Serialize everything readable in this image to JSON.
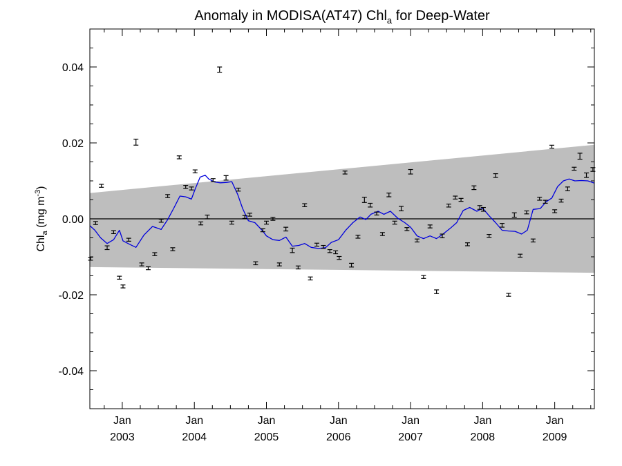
{
  "chart_data": {
    "type": "line",
    "title": {
      "main": "Anomaly in MODISA(AT47) Chl",
      "sub": "a",
      "rest": " for Deep-Water"
    },
    "ylabel": {
      "main": "Chl",
      "sub": "a",
      "mid": " (mg m",
      "sup": "-3",
      "end": ")"
    },
    "xlim": [
      2002.55,
      2009.55
    ],
    "ylim": [
      -0.05,
      0.05
    ],
    "x_ticks": [
      {
        "month": "Jan",
        "year": "2003",
        "x": 2003.0
      },
      {
        "month": "Jan",
        "year": "2004",
        "x": 2004.0
      },
      {
        "month": "Jan",
        "year": "2005",
        "x": 2005.0
      },
      {
        "month": "Jan",
        "year": "2006",
        "x": 2006.0
      },
      {
        "month": "Jan",
        "year": "2007",
        "x": 2007.0
      },
      {
        "month": "Jan",
        "year": "2008",
        "x": 2008.0
      },
      {
        "month": "Jan",
        "year": "2009",
        "x": 2009.0
      }
    ],
    "y_ticks": [
      {
        "value": 0.04,
        "label": "0.04"
      },
      {
        "value": 0.02,
        "label": "0.02"
      },
      {
        "value": 0.0,
        "label": "0.00"
      },
      {
        "value": -0.02,
        "label": "-0.02"
      },
      {
        "value": -0.04,
        "label": "-0.04"
      }
    ],
    "band": {
      "name": "uncertainty envelope",
      "upper": [
        [
          2002.55,
          0.0068
        ],
        [
          2009.55,
          0.0195
        ]
      ],
      "lower": [
        [
          2002.55,
          -0.0127
        ],
        [
          2009.55,
          -0.0142
        ]
      ]
    },
    "zero_line": 0.0,
    "series": [
      {
        "type": "errorbar",
        "color": "#000000",
        "points": [
          {
            "x": 2002.54,
            "y": -0.0105,
            "err": 0.0003
          },
          {
            "x": 2002.63,
            "y": -0.0011,
            "err": 0.0003
          },
          {
            "x": 2002.71,
            "y": 0.0087,
            "err": 0.0003
          },
          {
            "x": 2002.79,
            "y": -0.0076,
            "err": 0.0004
          },
          {
            "x": 2002.88,
            "y": -0.0035,
            "err": 0.0003
          },
          {
            "x": 2002.96,
            "y": -0.0155,
            "err": 0.0003
          },
          {
            "x": 2003.01,
            "y": -0.0178,
            "err": 0.0003
          },
          {
            "x": 2003.09,
            "y": -0.0055,
            "err": 0.0003
          },
          {
            "x": 2003.19,
            "y": 0.0202,
            "err": 0.0007
          },
          {
            "x": 2003.27,
            "y": -0.012,
            "err": 0.0003
          },
          {
            "x": 2003.36,
            "y": -0.013,
            "err": 0.0003
          },
          {
            "x": 2003.45,
            "y": -0.0093,
            "err": 0.0003
          },
          {
            "x": 2003.54,
            "y": -0.0005,
            "err": 0.0003
          },
          {
            "x": 2003.63,
            "y": 0.006,
            "err": 0.0003
          },
          {
            "x": 2003.7,
            "y": -0.008,
            "err": 0.0003
          },
          {
            "x": 2003.79,
            "y": 0.0162,
            "err": 0.0003
          },
          {
            "x": 2003.88,
            "y": 0.0084,
            "err": 0.0003
          },
          {
            "x": 2003.96,
            "y": 0.008,
            "err": 0.0003
          },
          {
            "x": 2004.01,
            "y": 0.0125,
            "err": 0.0003
          },
          {
            "x": 2004.09,
            "y": -0.0012,
            "err": 0.0003
          },
          {
            "x": 2004.18,
            "y": 0.0005,
            "err": 0.0004
          },
          {
            "x": 2004.26,
            "y": 0.0102,
            "err": 0.0003
          },
          {
            "x": 2004.35,
            "y": 0.0393,
            "err": 0.0006
          },
          {
            "x": 2004.44,
            "y": 0.0108,
            "err": 0.0005
          },
          {
            "x": 2004.52,
            "y": -0.001,
            "err": 0.0003
          },
          {
            "x": 2004.61,
            "y": 0.0077,
            "err": 0.0003
          },
          {
            "x": 2004.7,
            "y": 0.0005,
            "err": 0.0003
          },
          {
            "x": 2004.77,
            "y": 0.0011,
            "err": 0.0003
          },
          {
            "x": 2004.85,
            "y": -0.0117,
            "err": 0.0003
          },
          {
            "x": 2004.95,
            "y": -0.003,
            "err": 0.0003
          },
          {
            "x": 2005.0,
            "y": -0.001,
            "err": 0.0003
          },
          {
            "x": 2005.09,
            "y": 0.0,
            "err": 0.0003
          },
          {
            "x": 2005.18,
            "y": -0.012,
            "err": 0.0003
          },
          {
            "x": 2005.27,
            "y": -0.0027,
            "err": 0.0004
          },
          {
            "x": 2005.36,
            "y": -0.0083,
            "err": 0.0005
          },
          {
            "x": 2005.44,
            "y": -0.0128,
            "err": 0.0003
          },
          {
            "x": 2005.53,
            "y": 0.0036,
            "err": 0.0003
          },
          {
            "x": 2005.61,
            "y": -0.0157,
            "err": 0.0003
          },
          {
            "x": 2005.7,
            "y": -0.0068,
            "err": 0.0003
          },
          {
            "x": 2005.79,
            "y": -0.0074,
            "err": 0.0003
          },
          {
            "x": 2005.88,
            "y": -0.0085,
            "err": 0.0003
          },
          {
            "x": 2005.96,
            "y": -0.0088,
            "err": 0.0003
          },
          {
            "x": 2006.01,
            "y": -0.0103,
            "err": 0.0003
          },
          {
            "x": 2006.09,
            "y": 0.0122,
            "err": 0.0003
          },
          {
            "x": 2006.18,
            "y": -0.0122,
            "err": 0.0004
          },
          {
            "x": 2006.27,
            "y": -0.0047,
            "err": 0.0003
          },
          {
            "x": 2006.36,
            "y": 0.005,
            "err": 0.0006
          },
          {
            "x": 2006.44,
            "y": 0.0036,
            "err": 0.0004
          },
          {
            "x": 2006.53,
            "y": 0.0014,
            "err": 0.0003
          },
          {
            "x": 2006.61,
            "y": -0.004,
            "err": 0.0003
          },
          {
            "x": 2006.7,
            "y": 0.0063,
            "err": 0.0004
          },
          {
            "x": 2006.78,
            "y": -0.001,
            "err": 0.0003
          },
          {
            "x": 2006.87,
            "y": 0.0027,
            "err": 0.0005
          },
          {
            "x": 2006.95,
            "y": -0.0027,
            "err": 0.0003
          },
          {
            "x": 2007.0,
            "y": 0.0124,
            "err": 0.0005
          },
          {
            "x": 2007.09,
            "y": -0.0057,
            "err": 0.0003
          },
          {
            "x": 2007.18,
            "y": -0.0153,
            "err": 0.0003
          },
          {
            "x": 2007.27,
            "y": -0.002,
            "err": 0.0003
          },
          {
            "x": 2007.36,
            "y": -0.0192,
            "err": 0.0004
          },
          {
            "x": 2007.44,
            "y": -0.0045,
            "err": 0.0004
          },
          {
            "x": 2007.53,
            "y": 0.0035,
            "err": 0.0003
          },
          {
            "x": 2007.62,
            "y": 0.0056,
            "err": 0.0003
          },
          {
            "x": 2007.7,
            "y": 0.005,
            "err": 0.0003
          },
          {
            "x": 2007.79,
            "y": -0.0067,
            "err": 0.0003
          },
          {
            "x": 2007.88,
            "y": 0.0082,
            "err": 0.0004
          },
          {
            "x": 2007.96,
            "y": 0.003,
            "err": 0.0004
          },
          {
            "x": 2008.01,
            "y": 0.0025,
            "err": 0.0004
          },
          {
            "x": 2008.09,
            "y": -0.0045,
            "err": 0.0003
          },
          {
            "x": 2008.18,
            "y": 0.0114,
            "err": 0.0004
          },
          {
            "x": 2008.27,
            "y": -0.0017,
            "err": 0.0004
          },
          {
            "x": 2008.36,
            "y": -0.02,
            "err": 0.0003
          },
          {
            "x": 2008.44,
            "y": 0.001,
            "err": 0.0005
          },
          {
            "x": 2008.52,
            "y": -0.0097,
            "err": 0.0003
          },
          {
            "x": 2008.61,
            "y": 0.0017,
            "err": 0.0003
          },
          {
            "x": 2008.7,
            "y": -0.0057,
            "err": 0.0003
          },
          {
            "x": 2008.79,
            "y": 0.0053,
            "err": 0.0003
          },
          {
            "x": 2008.87,
            "y": 0.0045,
            "err": 0.0003
          },
          {
            "x": 2008.96,
            "y": 0.019,
            "err": 0.0003
          },
          {
            "x": 2009.0,
            "y": 0.002,
            "err": 0.0003
          },
          {
            "x": 2009.09,
            "y": 0.0048,
            "err": 0.0003
          },
          {
            "x": 2009.18,
            "y": 0.0079,
            "err": 0.0004
          },
          {
            "x": 2009.27,
            "y": 0.0132,
            "err": 0.0003
          },
          {
            "x": 2009.35,
            "y": 0.0165,
            "err": 0.0007
          },
          {
            "x": 2009.44,
            "y": 0.0115,
            "err": 0.0005
          },
          {
            "x": 2009.53,
            "y": 0.013,
            "err": 0.0004
          }
        ]
      },
      {
        "type": "line",
        "color": "#0000dd",
        "x": [
          2002.55,
          2002.62,
          2002.7,
          2002.79,
          2002.88,
          2002.96,
          2003.01,
          2003.1,
          2003.19,
          2003.3,
          2003.42,
          2003.54,
          2003.63,
          2003.72,
          2003.8,
          2003.88,
          2003.96,
          2004.01,
          2004.08,
          2004.15,
          2004.2,
          2004.28,
          2004.36,
          2004.45,
          2004.52,
          2004.6,
          2004.67,
          2004.75,
          2004.84,
          2004.94,
          2005.0,
          2005.09,
          2005.18,
          2005.27,
          2005.36,
          2005.45,
          2005.53,
          2005.62,
          2005.72,
          2005.82,
          2005.9,
          2006.0,
          2006.1,
          2006.2,
          2006.3,
          2006.38,
          2006.45,
          2006.55,
          2006.63,
          2006.72,
          2006.82,
          2006.92,
          2007.0,
          2007.09,
          2007.18,
          2007.27,
          2007.36,
          2007.45,
          2007.55,
          2007.64,
          2007.73,
          2007.82,
          2007.92,
          2008.0,
          2008.09,
          2008.18,
          2008.27,
          2008.36,
          2008.45,
          2008.54,
          2008.62,
          2008.7,
          2008.8,
          2008.88,
          2008.96,
          2009.04,
          2009.12,
          2009.2,
          2009.28,
          2009.37,
          2009.46,
          2009.55
        ],
        "y": [
          -0.0018,
          -0.003,
          -0.005,
          -0.0065,
          -0.0055,
          -0.003,
          -0.0058,
          -0.0067,
          -0.0075,
          -0.0043,
          -0.002,
          -0.0028,
          -0.0002,
          0.003,
          0.006,
          0.0058,
          0.0052,
          0.0078,
          0.011,
          0.0115,
          0.0105,
          0.0097,
          0.0095,
          0.0096,
          0.0098,
          0.0065,
          0.0027,
          -0.0005,
          -0.001,
          -0.003,
          -0.0045,
          -0.0055,
          -0.0057,
          -0.0048,
          -0.0072,
          -0.007,
          -0.0065,
          -0.0075,
          -0.0078,
          -0.0076,
          -0.0062,
          -0.0055,
          -0.003,
          -0.001,
          0.0005,
          -0.0002,
          0.0012,
          0.002,
          0.0012,
          0.002,
          0.0002,
          -0.001,
          -0.0022,
          -0.0045,
          -0.0052,
          -0.0045,
          -0.0052,
          -0.004,
          -0.0025,
          -0.001,
          0.0022,
          0.003,
          0.002,
          0.0028,
          0.0008,
          -0.001,
          -0.003,
          -0.0032,
          -0.0033,
          -0.004,
          -0.003,
          0.0025,
          0.0027,
          0.0045,
          0.0055,
          0.0085,
          0.01,
          0.0105,
          0.01,
          0.0101,
          0.01,
          0.0094
        ]
      }
    ]
  }
}
